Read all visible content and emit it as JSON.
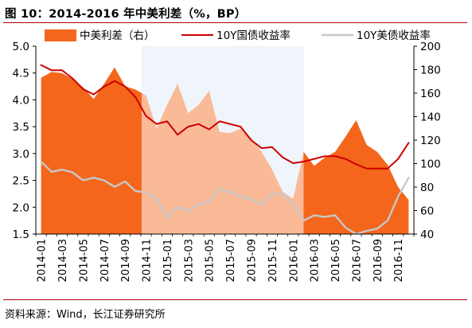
{
  "figure": {
    "title": "图 10：2014-2016 年中美利差（%，BP）",
    "source": "资料来源：Wind，长江证券研究所"
  },
  "colors": {
    "spread_fill": "#F4661B",
    "cn_line": "#CC0000",
    "us_line": "#C8C8C8",
    "shade": "#DCE8F5",
    "rule": "#B00000"
  },
  "chart_data": {
    "type": "line",
    "title": "",
    "x_tick_labels": [
      "2014-01",
      "2014-03",
      "2014-05",
      "2014-07",
      "2014-09",
      "2014-11",
      "2015-01",
      "2015-03",
      "2015-05",
      "2015-07",
      "2015-09",
      "2015-11",
      "2016-01",
      "2016-03",
      "2016-05",
      "2016-07",
      "2016-09",
      "2016-11"
    ],
    "x_range": [
      "2014-01",
      "2016-12"
    ],
    "y_left": {
      "min": 1.5,
      "max": 5.0,
      "ticks": [
        "1.5",
        "2.0",
        "2.5",
        "3.0",
        "3.5",
        "4.0",
        "4.5",
        "5.0"
      ]
    },
    "y_right": {
      "min": 40,
      "max": 200,
      "ticks": [
        "40",
        "60",
        "80",
        "100",
        "120",
        "140",
        "160",
        "180",
        "200"
      ]
    },
    "shaded_period": [
      "2014-11",
      "2016-02"
    ],
    "legend": {
      "position": "top",
      "entries": [
        "中美利差（右）",
        "10Y国债收益率",
        "10Y美债收益率"
      ]
    },
    "series": [
      {
        "name": "中美利差（右）",
        "type": "area",
        "axis": "right",
        "points": [
          [
            "2014-01",
            173
          ],
          [
            "2014-02",
            178
          ],
          [
            "2014-03",
            177
          ],
          [
            "2014-04",
            172
          ],
          [
            "2014-05",
            165
          ],
          [
            "2014-06",
            155
          ],
          [
            "2014-07",
            168
          ],
          [
            "2014-08",
            182
          ],
          [
            "2014-09",
            166
          ],
          [
            "2014-10",
            163
          ],
          [
            "2014-11",
            158
          ],
          [
            "2014-12",
            130
          ],
          [
            "2015-01",
            150
          ],
          [
            "2015-02",
            168
          ],
          [
            "2015-03",
            143
          ],
          [
            "2015-04",
            150
          ],
          [
            "2015-05",
            162
          ],
          [
            "2015-06",
            127
          ],
          [
            "2015-07",
            126
          ],
          [
            "2015-08",
            130
          ],
          [
            "2015-09",
            122
          ],
          [
            "2015-10",
            110
          ],
          [
            "2015-11",
            95
          ],
          [
            "2015-12",
            76
          ],
          [
            "2016-01",
            70
          ],
          [
            "2016-02",
            110
          ],
          [
            "2016-03",
            98
          ],
          [
            "2016-04",
            105
          ],
          [
            "2016-05",
            110
          ],
          [
            "2016-06",
            123
          ],
          [
            "2016-07",
            137
          ],
          [
            "2016-08",
            116
          ],
          [
            "2016-09",
            110
          ],
          [
            "2016-10",
            99
          ],
          [
            "2016-11",
            80
          ],
          [
            "2016-12",
            69
          ]
        ]
      },
      {
        "name": "10Y国债收益率",
        "type": "line",
        "axis": "left",
        "points": [
          [
            "2014-01",
            4.65
          ],
          [
            "2014-02",
            4.55
          ],
          [
            "2014-03",
            4.55
          ],
          [
            "2014-04",
            4.4
          ],
          [
            "2014-05",
            4.2
          ],
          [
            "2014-06",
            4.1
          ],
          [
            "2014-07",
            4.25
          ],
          [
            "2014-08",
            4.35
          ],
          [
            "2014-09",
            4.25
          ],
          [
            "2014-10",
            4.05
          ],
          [
            "2014-11",
            3.7
          ],
          [
            "2014-12",
            3.55
          ],
          [
            "2015-01",
            3.6
          ],
          [
            "2015-02",
            3.35
          ],
          [
            "2015-03",
            3.5
          ],
          [
            "2015-04",
            3.55
          ],
          [
            "2015-05",
            3.45
          ],
          [
            "2015-06",
            3.6
          ],
          [
            "2015-07",
            3.55
          ],
          [
            "2015-08",
            3.5
          ],
          [
            "2015-09",
            3.25
          ],
          [
            "2015-10",
            3.1
          ],
          [
            "2015-11",
            3.12
          ],
          [
            "2015-12",
            2.93
          ],
          [
            "2016-01",
            2.82
          ],
          [
            "2016-02",
            2.85
          ],
          [
            "2016-03",
            2.9
          ],
          [
            "2016-04",
            2.95
          ],
          [
            "2016-05",
            2.95
          ],
          [
            "2016-06",
            2.9
          ],
          [
            "2016-07",
            2.8
          ],
          [
            "2016-08",
            2.72
          ],
          [
            "2016-09",
            2.72
          ],
          [
            "2016-10",
            2.72
          ],
          [
            "2016-11",
            2.9
          ],
          [
            "2016-12",
            3.2
          ]
        ]
      },
      {
        "name": "10Y美债收益率",
        "type": "line",
        "axis": "left",
        "points": [
          [
            "2014-01",
            2.85
          ],
          [
            "2014-02",
            2.66
          ],
          [
            "2014-03",
            2.7
          ],
          [
            "2014-04",
            2.65
          ],
          [
            "2014-05",
            2.5
          ],
          [
            "2014-06",
            2.55
          ],
          [
            "2014-07",
            2.5
          ],
          [
            "2014-08",
            2.38
          ],
          [
            "2014-09",
            2.48
          ],
          [
            "2014-10",
            2.3
          ],
          [
            "2014-11",
            2.28
          ],
          [
            "2014-12",
            2.15
          ],
          [
            "2015-01",
            1.8
          ],
          [
            "2015-02",
            2.0
          ],
          [
            "2015-03",
            1.93
          ],
          [
            "2015-04",
            2.05
          ],
          [
            "2015-05",
            2.1
          ],
          [
            "2015-06",
            2.35
          ],
          [
            "2015-07",
            2.28
          ],
          [
            "2015-08",
            2.2
          ],
          [
            "2015-09",
            2.15
          ],
          [
            "2015-10",
            2.05
          ],
          [
            "2015-11",
            2.25
          ],
          [
            "2015-12",
            2.25
          ],
          [
            "2016-01",
            2.05
          ],
          [
            "2016-02",
            1.75
          ],
          [
            "2016-03",
            1.85
          ],
          [
            "2016-04",
            1.82
          ],
          [
            "2016-05",
            1.85
          ],
          [
            "2016-06",
            1.62
          ],
          [
            "2016-07",
            1.5
          ],
          [
            "2016-08",
            1.56
          ],
          [
            "2016-09",
            1.6
          ],
          [
            "2016-10",
            1.75
          ],
          [
            "2016-11",
            2.2
          ],
          [
            "2016-12",
            2.55
          ]
        ]
      }
    ]
  }
}
